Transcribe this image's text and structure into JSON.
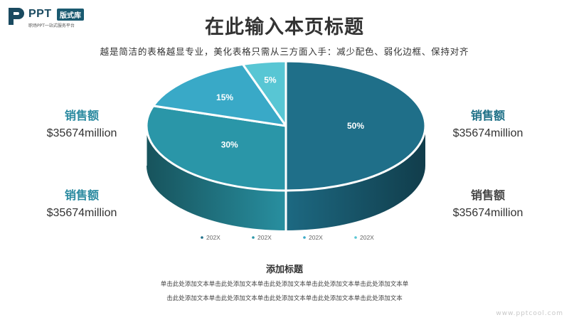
{
  "header": {
    "logo_text": "PPT",
    "logo_badge": "版式库",
    "logo_sub": "职场PPT一站式服务平台",
    "title": "在此输入本页标题",
    "subtitle": "越是简洁的表格越显专业，美化表格只需从三方面入手：减少配色、弱化边框、保持对齐"
  },
  "side_labels": [
    {
      "label": "销售额",
      "value": "$35674million",
      "color": "#2a8aa0"
    },
    {
      "label": "销售额",
      "value": "$35674million",
      "color": "#2a8aa0"
    },
    {
      "label": "销售额",
      "value": "$35674million",
      "color": "#1d6f86"
    },
    {
      "label": "销售额",
      "value": "$35674million",
      "color": "#444444"
    }
  ],
  "chart_data": {
    "type": "pie",
    "style": "3d",
    "categories": [
      "202X",
      "202X",
      "202X",
      "202X"
    ],
    "values": [
      50,
      30,
      15,
      5
    ],
    "labels": [
      "50%",
      "30%",
      "15%",
      "5%"
    ],
    "colors": [
      "#1f6f89",
      "#2a96a8",
      "#39a9c7",
      "#58c6d4"
    ],
    "legend": "bottom"
  },
  "caption": {
    "title": "添加标题",
    "line1": "单击此处添加文本单击此处添加文本单击此处添加文本单击此处添加文本单击此处添加文本单",
    "line2": "击此处添加文本单击此处添加文本单击此处添加文本单击此处添加文本单击此处添加文本"
  },
  "watermark": "www.pptcool.com"
}
